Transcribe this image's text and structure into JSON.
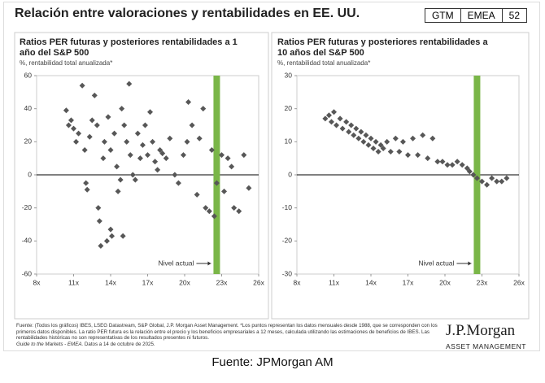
{
  "header": {
    "title": "Relación entre valoraciones y rentabilidades en EE. UU.",
    "badges": [
      "GTM",
      "EMEA",
      "52"
    ]
  },
  "chart_data": [
    {
      "type": "scatter",
      "title": "Ratios PER futuras y posteriores rentabilidades a 1 año del S&P 500",
      "subtitle": "%, rentabilidad total anualizada*",
      "color": "#575757",
      "xlim": [
        8,
        26
      ],
      "xticks": [
        {
          "value": 8,
          "label": "8x"
        },
        {
          "value": 11,
          "label": "11x"
        },
        {
          "value": 14,
          "label": "14x"
        },
        {
          "value": 17,
          "label": "17x"
        },
        {
          "value": 20,
          "label": "20x"
        },
        {
          "value": 23,
          "label": "23x"
        },
        {
          "value": 26,
          "label": "26x"
        }
      ],
      "ylim": [
        -60,
        60
      ],
      "yticks": [
        -60,
        -40,
        -20,
        0,
        20,
        40,
        60
      ],
      "reference_line": {
        "value": 22.6,
        "label": "Nivel actual",
        "color": "#7ab648"
      },
      "x": [
        10.4,
        10.6,
        10.8,
        11,
        11.2,
        11.4,
        11.7,
        11.9,
        12,
        12.1,
        12.3,
        12.5,
        12.7,
        12.9,
        13,
        13.1,
        13.2,
        13.4,
        13.5,
        13.7,
        13.8,
        14,
        14,
        14.1,
        14.3,
        14.5,
        14.6,
        14.8,
        14.9,
        15,
        15.1,
        15.3,
        15.5,
        15.6,
        15.8,
        16,
        16.2,
        16.4,
        16.6,
        16.8,
        17,
        17.2,
        17.4,
        17.6,
        17.8,
        18,
        18.2,
        18.5,
        18.8,
        19.2,
        19.5,
        19.9,
        20.2,
        20.3,
        20.6,
        21,
        21.2,
        21.5,
        21.7,
        22,
        22.2,
        22.4,
        22.6,
        23,
        23.2,
        23.5,
        23.8,
        24,
        24.4,
        24.8,
        25.2
      ],
      "values": [
        39,
        30,
        33,
        28,
        20,
        25,
        54,
        15,
        -5,
        -9,
        23,
        33,
        48,
        30,
        -20,
        -28,
        -43,
        10,
        20,
        -40,
        35,
        -33,
        15,
        -37,
        25,
        5,
        -10,
        -3,
        40,
        -37,
        30,
        20,
        55,
        12,
        0,
        -3,
        25,
        10,
        18,
        30,
        12,
        38,
        20,
        8,
        3,
        15,
        13,
        10,
        22,
        0,
        -5,
        12,
        20,
        44,
        30,
        -12,
        22,
        40,
        -20,
        -22,
        15,
        -25,
        -5,
        12,
        -10,
        10,
        5,
        -20,
        -22,
        12,
        -8
      ]
    },
    {
      "type": "scatter",
      "title": "Ratios PER futuras y posteriores rentabilidades a 10 años del S&P 500",
      "subtitle": "%, rentabilidad total anualizada*",
      "color": "#575757",
      "xlim": [
        8,
        26
      ],
      "xticks": [
        {
          "value": 8,
          "label": "8x"
        },
        {
          "value": 11,
          "label": "11x"
        },
        {
          "value": 14,
          "label": "14x"
        },
        {
          "value": 17,
          "label": "17x"
        },
        {
          "value": 20,
          "label": "20x"
        },
        {
          "value": 23,
          "label": "23x"
        },
        {
          "value": 26,
          "label": "26x"
        }
      ],
      "ylim": [
        -30,
        30
      ],
      "yticks": [
        -30,
        -20,
        -10,
        0,
        10,
        20,
        30
      ],
      "reference_line": {
        "value": 22.6,
        "label": "Nivel actual",
        "color": "#7ab648"
      },
      "x": [
        10.3,
        10.6,
        10.8,
        11,
        11.2,
        11.5,
        11.7,
        12,
        12.2,
        12.4,
        12.6,
        12.8,
        13,
        13.2,
        13.4,
        13.6,
        13.8,
        14,
        14.2,
        14.4,
        14.6,
        14.8,
        15,
        15.3,
        15.6,
        16,
        16.3,
        16.6,
        17,
        17.4,
        17.8,
        18.2,
        18.6,
        19,
        19.4,
        19.8,
        20.2,
        20.6,
        21,
        21.4,
        21.8,
        22,
        22.3,
        22.6,
        23,
        23.4,
        23.8,
        24.2,
        24.6,
        25
      ],
      "values": [
        17,
        18,
        16,
        19,
        15,
        17,
        14,
        16,
        13,
        15,
        12,
        14,
        11,
        13,
        10,
        12,
        9,
        11,
        8,
        10,
        7,
        9,
        8,
        10,
        7,
        11,
        7,
        10,
        6,
        11,
        6,
        12,
        5,
        11,
        4,
        4,
        3,
        3,
        4,
        3,
        2,
        1,
        0,
        -1,
        -2,
        -3,
        -1,
        -2,
        -2,
        -1
      ]
    }
  ],
  "footer": {
    "source": "Fuente: (Todos los gráficos) IBES, LSEG Datastream, S&P Global, J.P. Morgan Asset Management. *Los puntos representan los datos mensuales desde 1988, que se corresponden con los primeros datos disponibles. La ratio PER futura es la relación entre el precio y los beneficios empresariales a 12 meses, calculada utilizando las estimaciones de beneficios de IBES. Las rentabilidades históricas no son representativas de los resultados presentes ni futuros.",
    "guide": "Guide to the Markets - EMEA.",
    "date": "Datos a 14 de octubre de 2025."
  },
  "brand": {
    "name": "J.P.Morgan",
    "unit": "ASSET MANAGEMENT"
  },
  "caption": "Fuente: JPMorgan AM"
}
